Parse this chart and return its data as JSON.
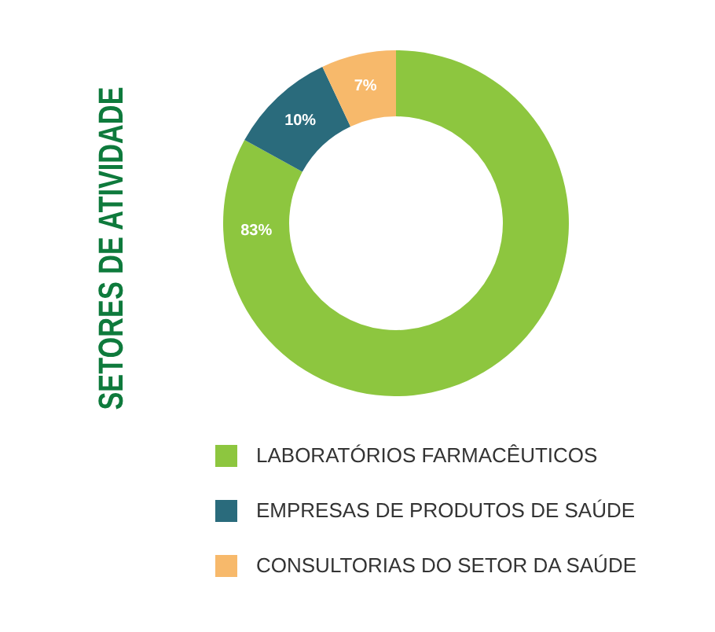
{
  "chart_data": {
    "type": "donut",
    "title": "SETORES DE ATIVIDADE",
    "categories": [
      "LABORATÓRIOS FARMACÊUTICOS",
      "EMPRESAS DE PRODUTOS DE SAÚDE",
      "CONSULTORIAS DO SETOR DA SAÚDE"
    ],
    "values": [
      83,
      10,
      7
    ],
    "colors": [
      "#8dc63f",
      "#2a6b7c",
      "#f7b96b"
    ],
    "value_labels": [
      "83%",
      "10%",
      "7%"
    ],
    "legend": "bottom"
  }
}
